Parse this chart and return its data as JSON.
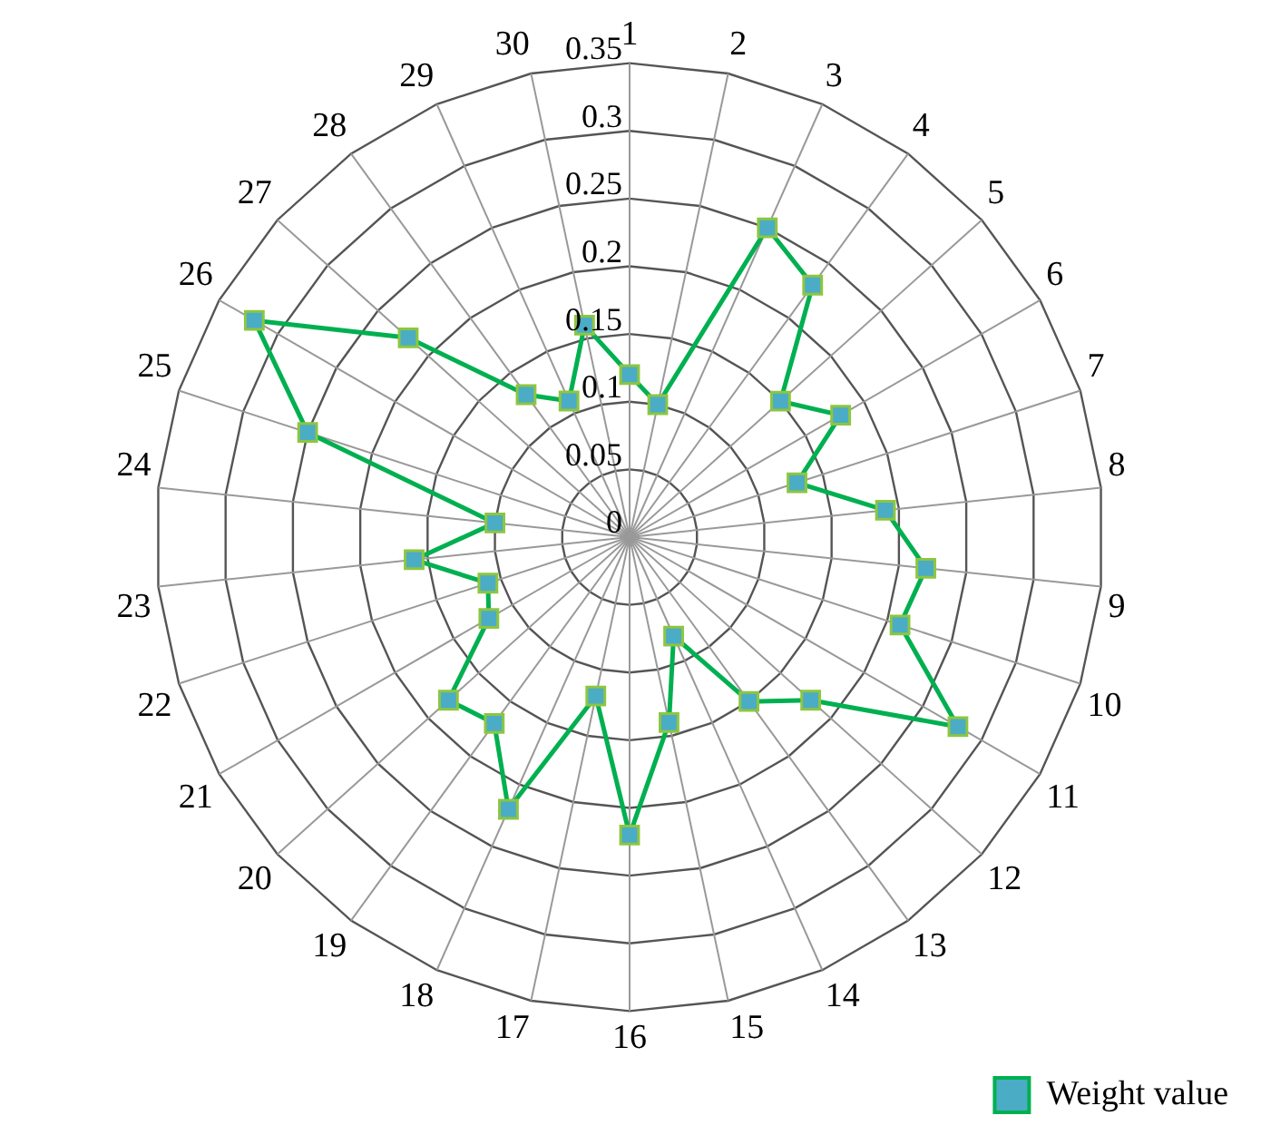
{
  "chart_data": {
    "type": "radar",
    "categories": [
      "1",
      "2",
      "3",
      "4",
      "5",
      "6",
      "7",
      "8",
      "9",
      "10",
      "11",
      "12",
      "13",
      "14",
      "15",
      "16",
      "17",
      "18",
      "19",
      "20",
      "21",
      "22",
      "23",
      "24",
      "25",
      "26",
      "27",
      "28",
      "29",
      "30"
    ],
    "series": [
      {
        "name": "Weight value",
        "color": "#00b050",
        "values": [
          0.12,
          0.1,
          0.25,
          0.23,
          0.15,
          0.18,
          0.13,
          0.19,
          0.22,
          0.21,
          0.28,
          0.18,
          0.15,
          0.08,
          0.14,
          0.22,
          0.12,
          0.22,
          0.17,
          0.18,
          0.12,
          0.11,
          0.16,
          0.1,
          0.25,
          0.32,
          0.22,
          0.13,
          0.11,
          0.16
        ]
      }
    ],
    "ylim": [
      0,
      0.35
    ],
    "yticks": [
      0,
      0.05,
      0.1,
      0.15,
      0.2,
      0.25,
      0.3,
      0.35
    ],
    "grid": true,
    "legend": "bottom right",
    "marker": "square",
    "line_style": "solid"
  }
}
